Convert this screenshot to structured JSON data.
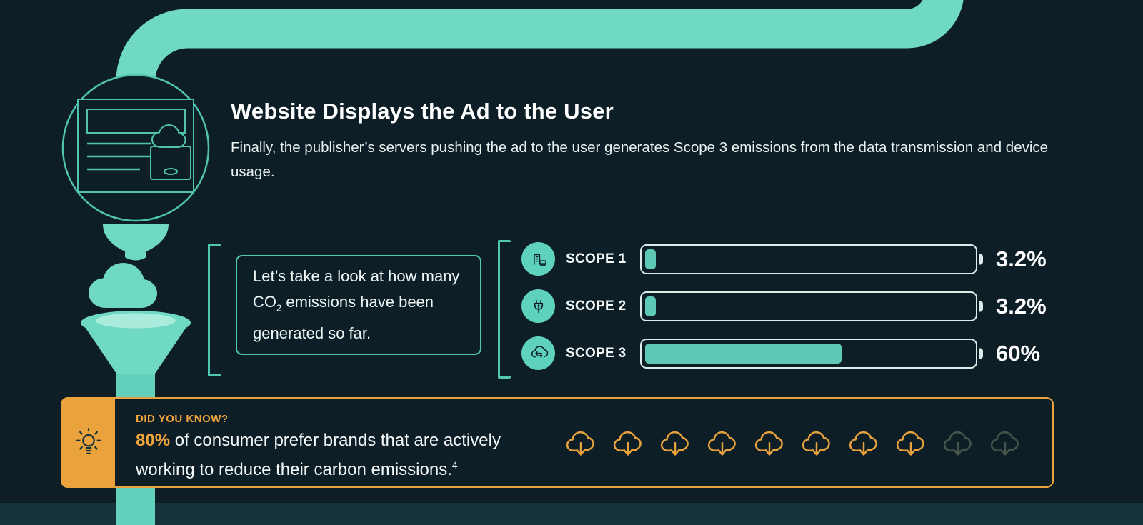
{
  "colors": {
    "background": "#0d1e27",
    "teal": "#6fd9c4",
    "teal_outline": "#4fc7b1",
    "orange": "#e9a23c",
    "bar_outline": "#dcebe8",
    "bar_fill": "#5ec9b4",
    "text": "#f2f7f6"
  },
  "step": {
    "title": "Website Displays the Ad to the User",
    "description": "Finally, the publisher’s servers pushing the ad to the user generates Scope 3 emissions from the data transmission and device usage."
  },
  "callout": {
    "text_before_sub": "Let’s take a look at how many CO",
    "subscript": "2",
    "text_after_sub": " emissions have been generated so far."
  },
  "scopes": {
    "rows": [
      {
        "label": "SCOPE 1",
        "icon": "factory-icon",
        "value": 3.2,
        "value_label": "3.2%"
      },
      {
        "label": "SCOPE 2",
        "icon": "power-plug-icon",
        "value": 3.2,
        "value_label": "3.2%"
      },
      {
        "label": "SCOPE 3",
        "icon": "cloud-transfer-icon",
        "value": 60,
        "value_label": "60%"
      }
    ]
  },
  "chart_data": {
    "type": "bar",
    "orientation": "horizontal",
    "categories": [
      "SCOPE 1",
      "SCOPE 2",
      "SCOPE 3"
    ],
    "values": [
      3.2,
      3.2,
      60
    ],
    "value_labels": [
      "3.2%",
      "3.2%",
      "60%"
    ],
    "unit": "%",
    "xlim": [
      0,
      100
    ],
    "legend": "none",
    "grid": false
  },
  "did_you_know": {
    "kicker": "DID YOU KNOW?",
    "highlight": "80%",
    "fact": " of consumer prefer brands that are actively working to reduce their carbon emissions.",
    "footnote_marker": "4",
    "pictogram": {
      "icon": "cloud-download-icon",
      "total": 10,
      "highlighted": 8,
      "represents_percent": 80,
      "highlight_color": "#e9a23c",
      "dim_color": "#47544b"
    }
  }
}
